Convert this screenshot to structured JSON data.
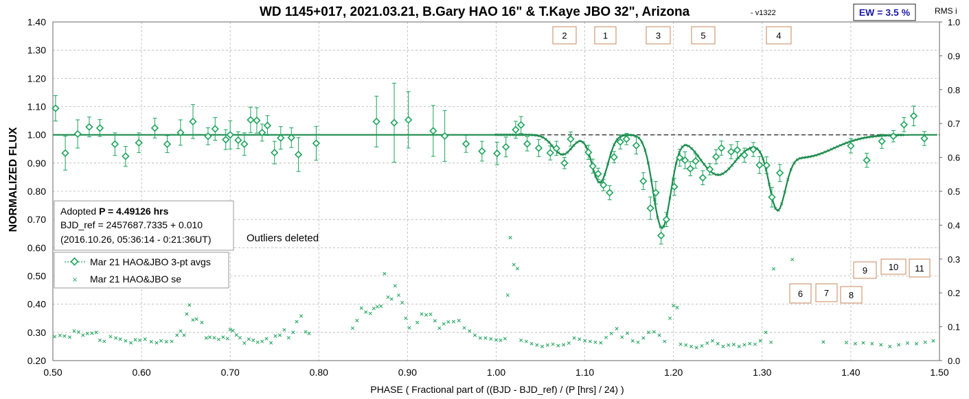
{
  "colors": {
    "series": "#1aa35a",
    "ref_line": "#333333",
    "grid": "#b5b5b5",
    "box_border": "#c8865a",
    "ew_text": "#1a1aa8"
  },
  "header": {
    "title": "WD 1145+017, 2021.03.21, B.Gary HAO 16\" & T.Kaye JBO 32\", Arizona",
    "version": "-  v1322",
    "ew_label": "EW = 3.5 %",
    "rms_label": "RMS i"
  },
  "info_box": {
    "line1_prefix": "Adopted ",
    "line1_bold": "P = 4.49126 hrs",
    "line2": "BJD_ref = 2457687.7335 + 0.010",
    "line3": "(2016.10.26, 05:36:14 - 0:21:36UT)"
  },
  "note": "Outliers deleted",
  "legend": {
    "items": [
      "Mar 21 HAO&JBO 3-pt avgs",
      "Mar 21 HAO&JBO se"
    ]
  },
  "markers": [
    "2",
    "1",
    "3",
    "5",
    "4",
    "6",
    "7",
    "8",
    "9",
    "10",
    "11"
  ],
  "chart_data": {
    "type": "scatter",
    "xlabel": "PHASE ( Fractional part of ((BJD - BJD_ref) / (P [hrs] / 24) )",
    "ylabel": "NORMALIZED FLUX",
    "y2label": "RMS i",
    "xlim": [
      0.5,
      1.5
    ],
    "ylim": [
      0.2,
      1.4
    ],
    "y2lim": [
      0.0,
      1.0
    ],
    "xticks": [
      "0.50",
      "0.60",
      "0.70",
      "0.80",
      "0.90",
      "1.00",
      "1.10",
      "1.20",
      "1.30",
      "1.40",
      "1.50"
    ],
    "yticks": [
      "0.20",
      "0.30",
      "0.40",
      "0.50",
      "0.60",
      "0.70",
      "0.80",
      "0.90",
      "1.00",
      "1.10",
      "1.20",
      "1.30",
      "1.40"
    ],
    "y2ticks": [
      "0.0",
      "0.1",
      "0.2",
      "0.3",
      "0.4",
      "0.5",
      "0.6",
      "0.7",
      "0.8",
      "0.9",
      "1.0"
    ],
    "grid": true,
    "reference_line": 1.0,
    "model_dips": [
      {
        "center": 1.075,
        "depth": 0.07,
        "width": 0.011
      },
      {
        "center": 1.117,
        "depth": 0.17,
        "width": 0.009
      },
      {
        "center": 1.187,
        "depth": 0.33,
        "width": 0.01
      },
      {
        "center": 1.25,
        "depth": 0.14,
        "width": 0.02
      },
      {
        "center": 1.317,
        "depth": 0.21,
        "width": 0.009
      },
      {
        "center": 1.345,
        "depth": 0.08,
        "width": 0.035
      }
    ],
    "series": [
      {
        "name": "Mar 21 HAO&JBO 3-pt avgs",
        "points": [
          [
            0.503,
            1.094,
            0.045
          ],
          [
            0.514,
            0.935,
            0.06
          ],
          [
            0.528,
            1.003,
            0.05
          ],
          [
            0.541,
            1.028,
            0.035
          ],
          [
            0.553,
            1.024,
            0.03
          ],
          [
            0.57,
            0.967,
            0.04
          ],
          [
            0.582,
            0.924,
            0.035
          ],
          [
            0.597,
            0.972,
            0.035
          ],
          [
            0.615,
            1.024,
            0.035
          ],
          [
            0.629,
            0.967,
            0.03
          ],
          [
            0.644,
            1.008,
            0.045
          ],
          [
            0.658,
            1.047,
            0.06
          ],
          [
            0.675,
            0.995,
            0.03
          ],
          [
            0.683,
            1.021,
            0.04
          ],
          [
            0.695,
            0.983,
            0.035
          ],
          [
            0.7,
            1.0,
            0.05
          ],
          [
            0.709,
            0.981,
            0.03
          ],
          [
            0.716,
            0.967,
            0.04
          ],
          [
            0.723,
            1.053,
            0.045
          ],
          [
            0.73,
            1.051,
            0.045
          ],
          [
            0.736,
            1.008,
            0.03
          ],
          [
            0.742,
            1.033,
            0.035
          ],
          [
            0.75,
            0.937,
            0.04
          ],
          [
            0.757,
            0.989,
            0.04
          ],
          [
            0.769,
            0.99,
            0.035
          ],
          [
            0.777,
            0.93,
            0.06
          ],
          [
            0.797,
            0.97,
            0.06
          ],
          [
            0.865,
            1.047,
            0.09
          ],
          [
            0.885,
            1.043,
            0.14
          ],
          [
            0.901,
            1.053,
            0.1
          ],
          [
            0.929,
            1.014,
            0.09
          ],
          [
            0.942,
            0.996,
            0.09
          ],
          [
            0.966,
            0.968,
            0.03
          ],
          [
            0.984,
            0.942,
            0.035
          ],
          [
            1.001,
            0.934,
            0.04
          ],
          [
            1.011,
            0.957,
            0.035
          ],
          [
            1.022,
            1.018,
            0.03
          ],
          [
            1.028,
            1.035,
            0.03
          ],
          [
            1.035,
            0.968,
            0.025
          ],
          [
            1.048,
            0.953,
            0.03
          ],
          [
            1.061,
            0.936,
            0.025
          ],
          [
            1.068,
            0.952,
            0.025
          ],
          [
            1.077,
            0.9,
            0.02
          ],
          [
            1.084,
            0.985,
            0.025
          ],
          [
            1.104,
            0.938,
            0.025
          ],
          [
            1.109,
            0.889,
            0.025
          ],
          [
            1.115,
            0.862,
            0.02
          ],
          [
            1.121,
            0.822,
            0.02
          ],
          [
            1.128,
            0.795,
            0.025
          ],
          [
            1.133,
            0.921,
            0.02
          ],
          [
            1.14,
            0.975,
            0.025
          ],
          [
            1.147,
            0.985,
            0.02
          ],
          [
            1.158,
            0.962,
            0.03
          ],
          [
            1.166,
            0.836,
            0.03
          ],
          [
            1.174,
            0.74,
            0.04
          ],
          [
            1.18,
            0.795,
            0.04
          ],
          [
            1.186,
            0.643,
            0.03
          ],
          [
            1.192,
            0.7,
            0.025
          ],
          [
            1.201,
            0.816,
            0.03
          ],
          [
            1.207,
            0.919,
            0.03
          ],
          [
            1.213,
            0.91,
            0.03
          ],
          [
            1.219,
            0.88,
            0.025
          ],
          [
            1.225,
            0.907,
            0.025
          ],
          [
            1.233,
            0.848,
            0.025
          ],
          [
            1.241,
            0.878,
            0.02
          ],
          [
            1.248,
            0.922,
            0.025
          ],
          [
            1.254,
            0.953,
            0.025
          ],
          [
            1.265,
            0.94,
            0.025
          ],
          [
            1.272,
            0.946,
            0.03
          ],
          [
            1.28,
            0.928,
            0.025
          ],
          [
            1.29,
            0.948,
            0.025
          ],
          [
            1.297,
            0.893,
            0.03
          ],
          [
            1.305,
            0.892,
            0.03
          ],
          [
            1.311,
            0.779,
            0.035
          ],
          [
            1.32,
            0.865,
            0.03
          ],
          [
            1.4,
            0.961,
            0.025
          ],
          [
            1.418,
            0.91,
            0.025
          ],
          [
            1.435,
            0.977,
            0.025
          ],
          [
            1.448,
            0.995,
            0.02
          ],
          [
            1.46,
            1.036,
            0.025
          ],
          [
            1.471,
            1.067,
            0.035
          ],
          [
            1.483,
            0.987,
            0.025
          ]
        ]
      },
      {
        "name": "Mar 21 HAO&JBO se",
        "points": [
          [
            0.502,
            0.285
          ],
          [
            0.508,
            0.289
          ],
          [
            0.513,
            0.287
          ],
          [
            0.519,
            0.283
          ],
          [
            0.524,
            0.305
          ],
          [
            0.529,
            0.301
          ],
          [
            0.534,
            0.29
          ],
          [
            0.539,
            0.296
          ],
          [
            0.544,
            0.297
          ],
          [
            0.549,
            0.3
          ],
          [
            0.553,
            0.272
          ],
          [
            0.558,
            0.268
          ],
          [
            0.565,
            0.285
          ],
          [
            0.571,
            0.28
          ],
          [
            0.576,
            0.276
          ],
          [
            0.582,
            0.27
          ],
          [
            0.588,
            0.263
          ],
          [
            0.593,
            0.274
          ],
          [
            0.598,
            0.272
          ],
          [
            0.604,
            0.276
          ],
          [
            0.611,
            0.267
          ],
          [
            0.617,
            0.263
          ],
          [
            0.622,
            0.27
          ],
          [
            0.628,
            0.267
          ],
          [
            0.634,
            0.268
          ],
          [
            0.64,
            0.29
          ],
          [
            0.644,
            0.305
          ],
          [
            0.648,
            0.29
          ],
          [
            0.651,
            0.365
          ],
          [
            0.654,
            0.397
          ],
          [
            0.658,
            0.344
          ],
          [
            0.662,
            0.347
          ],
          [
            0.668,
            0.335
          ],
          [
            0.673,
            0.28
          ],
          [
            0.677,
            0.283
          ],
          [
            0.682,
            0.281
          ],
          [
            0.687,
            0.275
          ],
          [
            0.692,
            0.283
          ],
          [
            0.697,
            0.278
          ],
          [
            0.7,
            0.31
          ],
          [
            0.703,
            0.306
          ],
          [
            0.707,
            0.291
          ],
          [
            0.711,
            0.281
          ],
          [
            0.716,
            0.262
          ],
          [
            0.721,
            0.276
          ],
          [
            0.726,
            0.272
          ],
          [
            0.731,
            0.265
          ],
          [
            0.736,
            0.268
          ],
          [
            0.741,
            0.278
          ],
          [
            0.746,
            0.263
          ],
          [
            0.751,
            0.287
          ],
          [
            0.756,
            0.29
          ],
          [
            0.761,
            0.309
          ],
          [
            0.766,
            0.281
          ],
          [
            0.771,
            0.3
          ],
          [
            0.775,
            0.338
          ],
          [
            0.78,
            0.358
          ],
          [
            0.785,
            0.302
          ],
          [
            0.789,
            0.296
          ],
          [
            0.838,
            0.315
          ],
          [
            0.843,
            0.342
          ],
          [
            0.848,
            0.386
          ],
          [
            0.853,
            0.372
          ],
          [
            0.858,
            0.367
          ],
          [
            0.862,
            0.385
          ],
          [
            0.866,
            0.391
          ],
          [
            0.87,
            0.393
          ],
          [
            0.874,
            0.508
          ],
          [
            0.878,
            0.425
          ],
          [
            0.882,
            0.418
          ],
          [
            0.886,
            0.465
          ],
          [
            0.89,
            0.432
          ],
          [
            0.894,
            0.405
          ],
          [
            0.898,
            0.35
          ],
          [
            0.902,
            0.316
          ],
          [
            0.911,
            0.335
          ],
          [
            0.916,
            0.365
          ],
          [
            0.921,
            0.362
          ],
          [
            0.926,
            0.364
          ],
          [
            0.931,
            0.341
          ],
          [
            0.936,
            0.315
          ],
          [
            0.941,
            0.33
          ],
          [
            0.946,
            0.337
          ],
          [
            0.952,
            0.338
          ],
          [
            0.958,
            0.342
          ],
          [
            0.964,
            0.316
          ],
          [
            0.97,
            0.305
          ],
          [
            0.976,
            0.29
          ],
          [
            0.982,
            0.28
          ],
          [
            0.988,
            0.28
          ],
          [
            0.994,
            0.277
          ],
          [
            1.0,
            0.273
          ],
          [
            1.005,
            0.272
          ],
          [
            1.01,
            0.278
          ],
          [
            1.013,
            0.432
          ],
          [
            1.016,
            0.636
          ],
          [
            1.02,
            0.54
          ],
          [
            1.024,
            0.526
          ],
          [
            1.028,
            0.272
          ],
          [
            1.034,
            0.268
          ],
          [
            1.04,
            0.26
          ],
          [
            1.046,
            0.255
          ],
          [
            1.052,
            0.25
          ],
          [
            1.058,
            0.255
          ],
          [
            1.064,
            0.258
          ],
          [
            1.07,
            0.253
          ],
          [
            1.076,
            0.256
          ],
          [
            1.082,
            0.262
          ],
          [
            1.088,
            0.28
          ],
          [
            1.094,
            0.276
          ],
          [
            1.1,
            0.27
          ],
          [
            1.106,
            0.268
          ],
          [
            1.112,
            0.265
          ],
          [
            1.118,
            0.263
          ],
          [
            1.124,
            0.282
          ],
          [
            1.13,
            0.296
          ],
          [
            1.136,
            0.313
          ],
          [
            1.142,
            0.283
          ],
          [
            1.148,
            0.297
          ],
          [
            1.154,
            0.27
          ],
          [
            1.16,
            0.265
          ],
          [
            1.166,
            0.28
          ],
          [
            1.172,
            0.3
          ],
          [
            1.178,
            0.302
          ],
          [
            1.184,
            0.29
          ],
          [
            1.19,
            0.268
          ],
          [
            1.196,
            0.35
          ],
          [
            1.2,
            0.395
          ],
          [
            1.204,
            0.388
          ],
          [
            1.208,
            0.258
          ],
          [
            1.214,
            0.255
          ],
          [
            1.22,
            0.25
          ],
          [
            1.226,
            0.246
          ],
          [
            1.232,
            0.252
          ],
          [
            1.238,
            0.262
          ],
          [
            1.244,
            0.27
          ],
          [
            1.25,
            0.26
          ],
          [
            1.256,
            0.25
          ],
          [
            1.262,
            0.255
          ],
          [
            1.268,
            0.257
          ],
          [
            1.274,
            0.25
          ],
          [
            1.28,
            0.256
          ],
          [
            1.286,
            0.26
          ],
          [
            1.292,
            0.258
          ],
          [
            1.298,
            0.27
          ],
          [
            1.304,
            0.3
          ],
          [
            1.31,
            0.265
          ],
          [
            1.313,
            0.525
          ],
          [
            1.334,
            0.558
          ],
          [
            1.369,
            0.266
          ],
          [
            1.395,
            0.264
          ],
          [
            1.405,
            0.26
          ],
          [
            1.414,
            0.263
          ],
          [
            1.424,
            0.26
          ],
          [
            1.434,
            0.256
          ],
          [
            1.444,
            0.25
          ],
          [
            1.454,
            0.256
          ],
          [
            1.464,
            0.262
          ],
          [
            1.474,
            0.26
          ],
          [
            1.484,
            0.265
          ],
          [
            1.493,
            0.27
          ]
        ]
      }
    ]
  }
}
